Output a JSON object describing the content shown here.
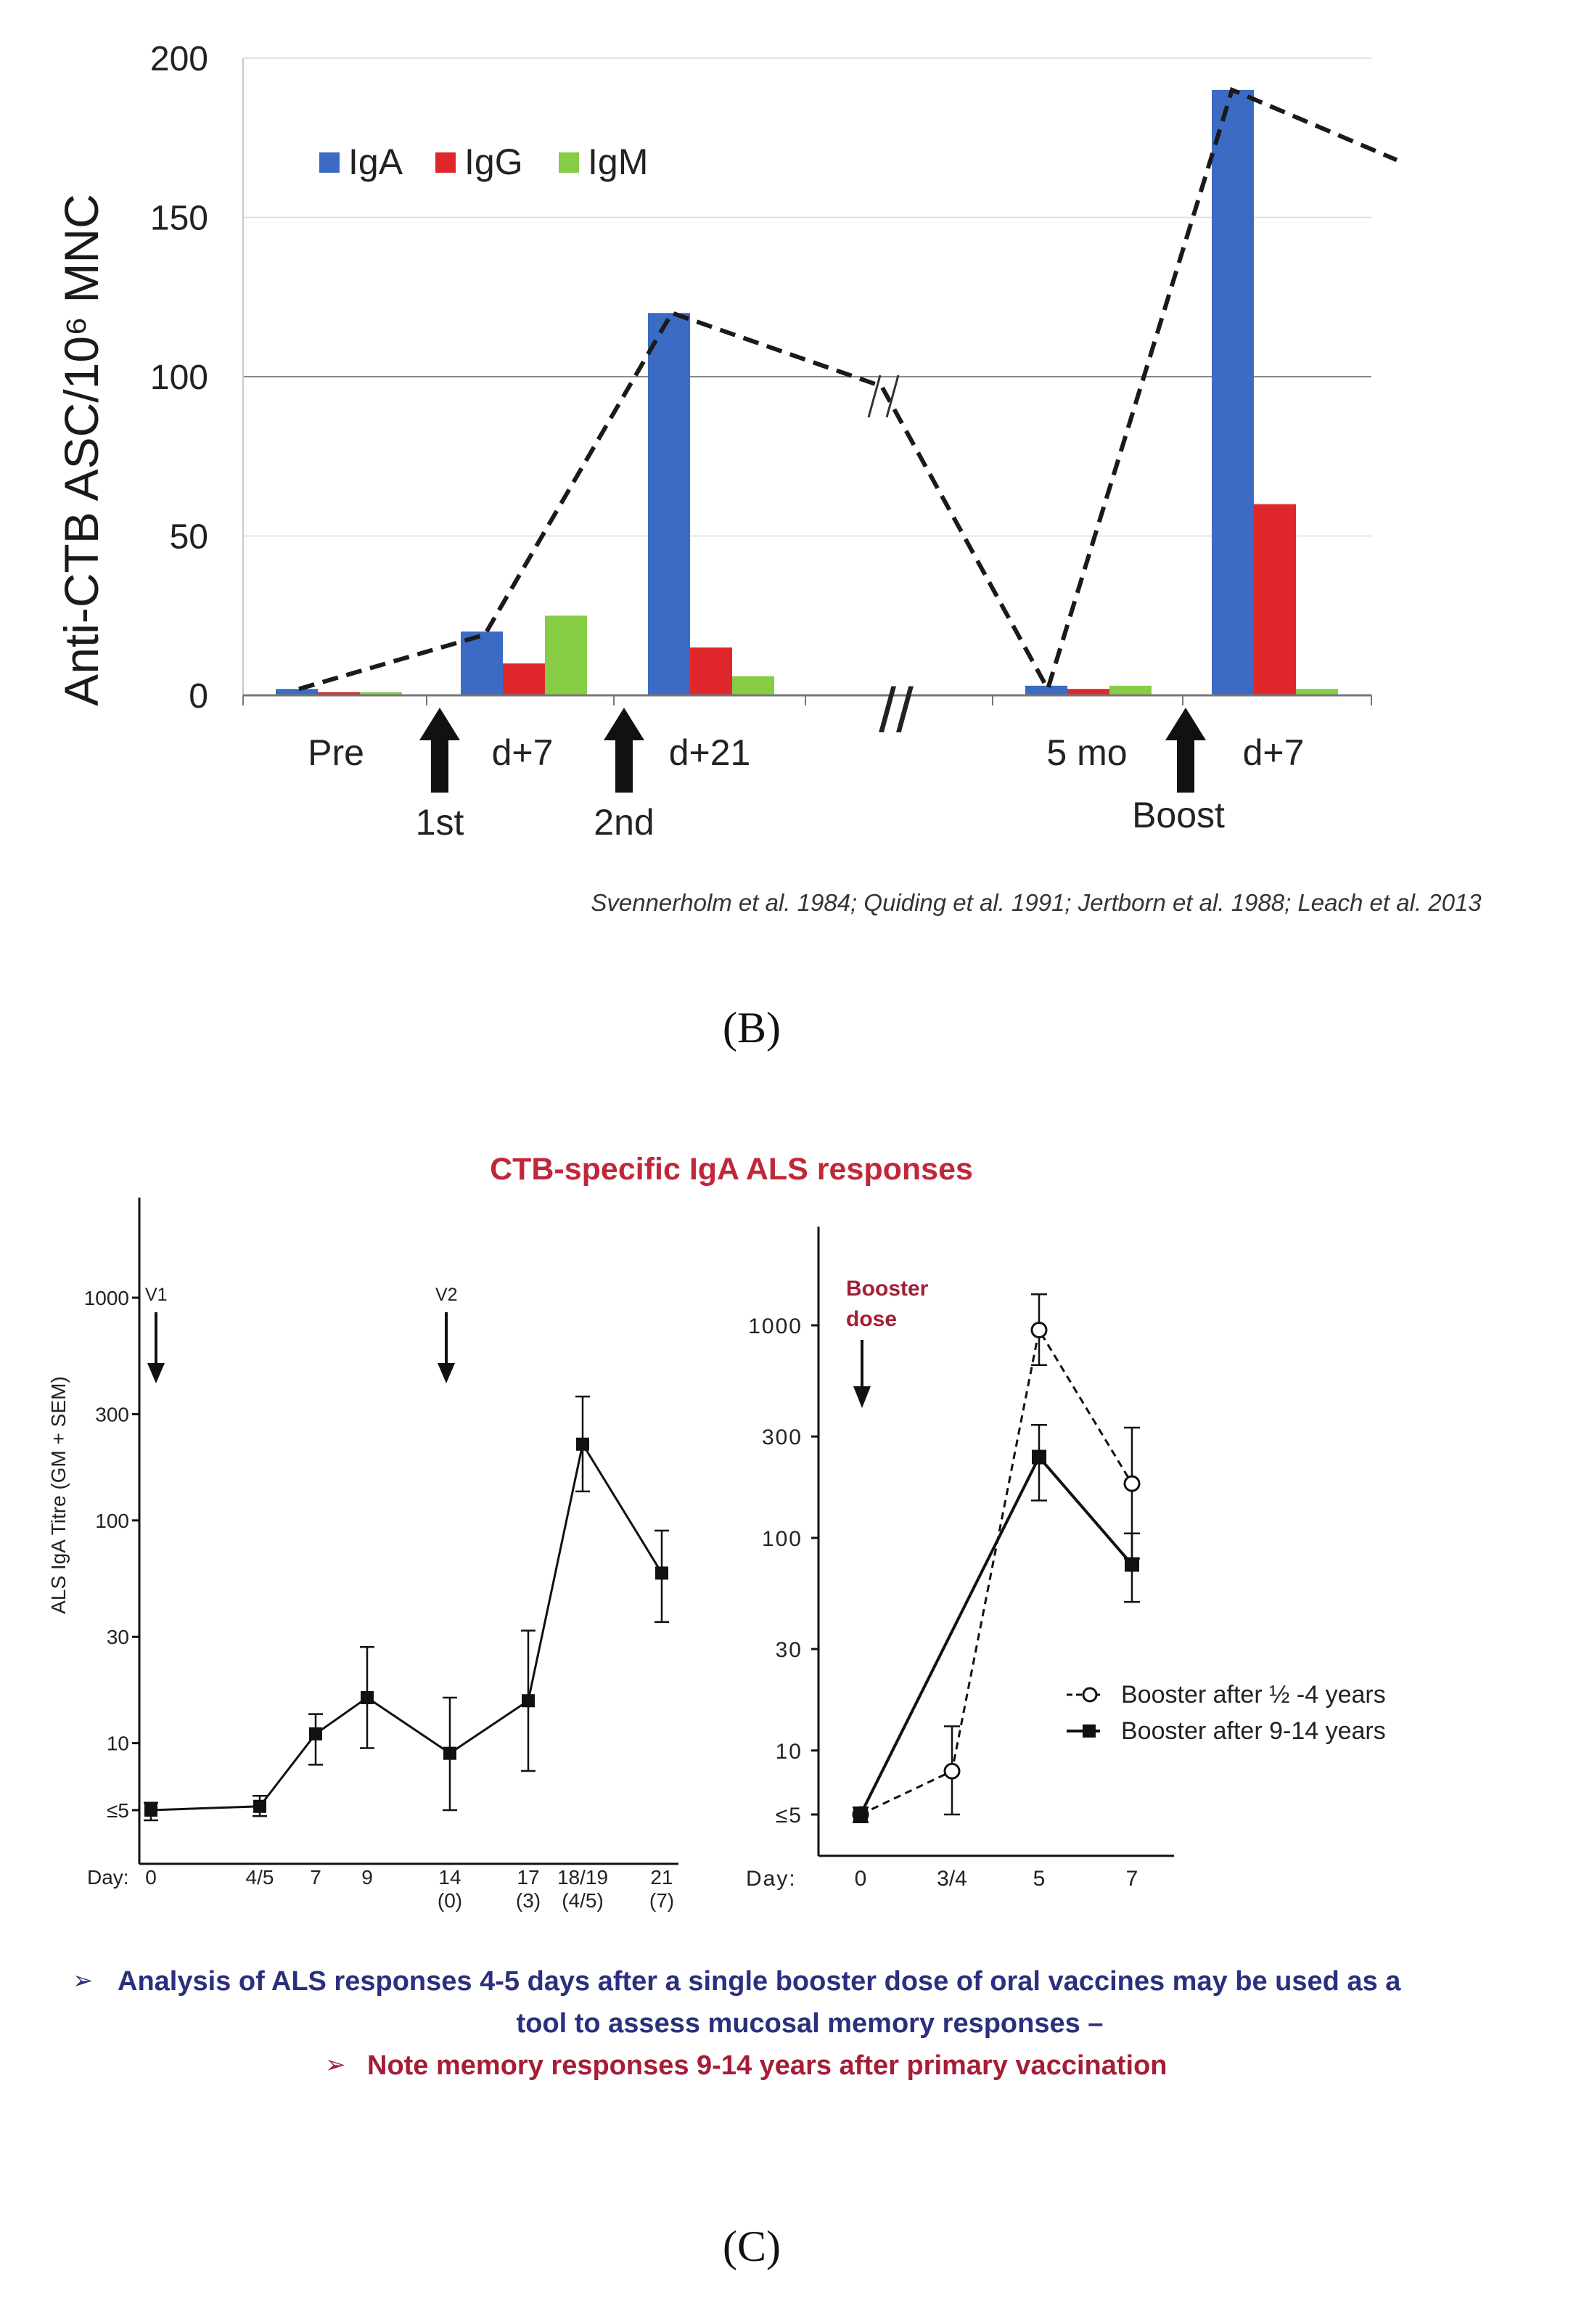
{
  "panel_b": {
    "label": "(B)",
    "citation": "Svennerholm et al. 1984; Quiding et al. 1991; Jertborn et al. 1988; Leach et al. 2013",
    "arrows": [
      "1st",
      "2nd",
      "Boost"
    ],
    "break_mark": "//"
  },
  "panel_c": {
    "label": "(C)",
    "title": "CTB-specific IgA ALS responses",
    "left_annotations": [
      "V1",
      "V2"
    ],
    "right_annotation": [
      "Booster",
      "dose"
    ],
    "bullets": [
      "Analysis of ALS responses 4-5 days after a single booster dose of oral vaccines  may be used as a",
      "tool to assess mucosal memory responses –",
      "Note memory responses 9-14 years after primary vaccination"
    ],
    "bullet_marker": "➢"
  },
  "colors": {
    "iga": "#3b6bc4",
    "igg": "#e0282c",
    "igm": "#86cc45",
    "title_red": "#c0283a",
    "bullet_navy": "#2a2f7e",
    "bullet_red": "#a51d36"
  },
  "chart_data": [
    {
      "type": "bar",
      "ylabel": "Anti-CTB ASC/10⁶ MNC",
      "ylim": [
        0,
        200
      ],
      "yticks": [
        0,
        50,
        100,
        150,
        200
      ],
      "categories": [
        "Pre",
        "d+7",
        "d+21",
        "5 mo",
        "d+7"
      ],
      "legend": [
        "IgA",
        "IgG",
        "IgM"
      ],
      "series": [
        {
          "name": "IgA",
          "values": [
            2,
            20,
            120,
            3,
            190
          ]
        },
        {
          "name": "IgG",
          "values": [
            1,
            10,
            15,
            2,
            60
          ]
        },
        {
          "name": "IgM",
          "values": [
            1,
            25,
            6,
            3,
            2
          ]
        }
      ],
      "trend_line": [
        2,
        19,
        120,
        97,
        2,
        190,
        168
      ]
    },
    {
      "type": "line",
      "ylabel": "ALS IgA Titre (GM + SEM)",
      "xlabel": "Day:",
      "ytick_labels": [
        "≤5",
        "10",
        "30",
        "100",
        "300",
        "1000"
      ],
      "yticks": [
        5,
        10,
        30,
        100,
        300,
        1000
      ],
      "x_labels": [
        "0",
        "4/5",
        "7",
        "9",
        "14",
        "17",
        "18/19",
        "21"
      ],
      "x_sublabels": [
        "",
        "",
        "",
        "",
        "(0)",
        "(3)",
        "(4/5)",
        "(7)"
      ],
      "values": [
        5,
        5.2,
        11,
        16,
        9,
        15.5,
        220,
        58
      ],
      "err_low": [
        4.5,
        4.7,
        8,
        9.5,
        5,
        7.5,
        135,
        35
      ],
      "err_high": [
        5.4,
        5.8,
        13.5,
        27,
        16,
        32,
        360,
        90
      ]
    },
    {
      "type": "line",
      "xlabel": "Day:",
      "ytick_labels": [
        "≤5",
        "10",
        "30",
        "100",
        "300",
        "1000"
      ],
      "yticks": [
        5,
        10,
        30,
        100,
        300,
        1000
      ],
      "x_labels": [
        "0",
        "3/4",
        "5",
        "7"
      ],
      "series": [
        {
          "name": "Booster after ½ -4 years",
          "marker": "open-circle",
          "dash": true,
          "values": [
            5,
            8,
            950,
            180
          ],
          "err_low": [
            4.6,
            5,
            650,
            80
          ],
          "err_high": [
            5.4,
            13,
            1400,
            330
          ]
        },
        {
          "name": "Booster after 9-14 years",
          "marker": "filled-square",
          "dash": false,
          "values": [
            5,
            null,
            240,
            75
          ],
          "err_low": [
            4.6,
            null,
            150,
            50
          ],
          "err_high": [
            5.4,
            null,
            340,
            105
          ]
        }
      ]
    }
  ]
}
